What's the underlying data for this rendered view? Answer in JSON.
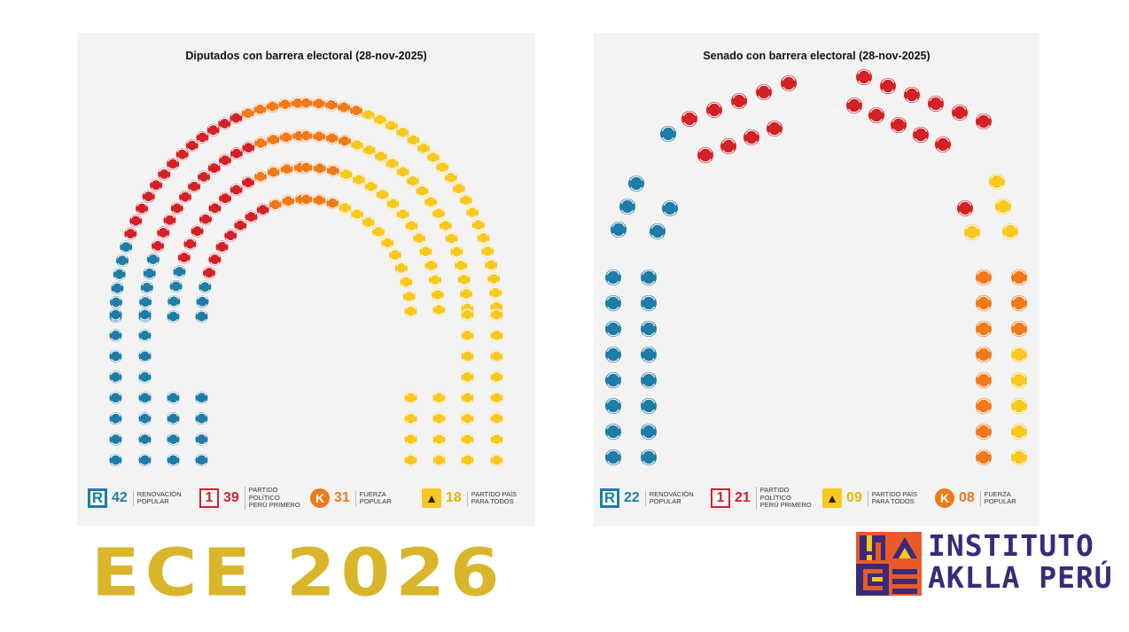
{
  "chart_data": [
    {
      "type": "parliament",
      "title": "Diputados con barrera electoral (28-nov-2025)",
      "total_seats": 130,
      "series": [
        {
          "name": "RENOVACIÓN POPULAR",
          "value": 42,
          "color": "#1f7ca6"
        },
        {
          "name": "PARTIDO POLÍTICO PERÚ PRIMERO",
          "value": 39,
          "color": "#d32128"
        },
        {
          "name": "FUERZA POPULAR",
          "value": 31,
          "color": "#f07a1a"
        },
        {
          "name": "PARTIDO PAÍS PARA TODOS",
          "value": 18,
          "color": "#f7c81e"
        }
      ]
    },
    {
      "type": "parliament",
      "title": "Senado con barrera electoral (28-nov-2025)",
      "total_seats": 60,
      "series": [
        {
          "name": "RENOVACIÓN POPULAR",
          "value": 22,
          "color": "#1f7ca6"
        },
        {
          "name": "PARTIDO POLÍTICO PERÚ PRIMERO",
          "value": 21,
          "color": "#d32128"
        },
        {
          "name": "PARTIDO PAÍS PARA TODOS",
          "value": 9,
          "color": "#f7c81e"
        },
        {
          "name": "FUERZA POPULAR",
          "value": 8,
          "color": "#f07a1a"
        }
      ]
    }
  ],
  "legend_dip": [
    {
      "logo": "R",
      "logo_icon": "renovacion-popular-logo",
      "num": "42",
      "line1": "RENOVACIÓN",
      "line2": "POPULAR",
      "line3": "",
      "color": "#1f7ca6"
    },
    {
      "logo": "1",
      "logo_icon": "peru-primero-logo",
      "num": "39",
      "line1": "PARTIDO",
      "line2": "POLÍTICO",
      "line3": "PERÚ PRIMERO",
      "color": "#d32128"
    },
    {
      "logo": "K",
      "logo_icon": "fuerza-popular-logo",
      "num": "31",
      "line1": "FUERZA",
      "line2": "POPULAR",
      "line3": "",
      "color": "#f07a1a"
    },
    {
      "logo": "▲",
      "logo_icon": "pais-para-todos-logo",
      "num": "18",
      "line1": "PARTIDO PAÍS",
      "line2": "PARA TODOS",
      "line3": "",
      "color": "#f7c81e"
    }
  ],
  "legend_sen": [
    {
      "logo": "R",
      "logo_icon": "renovacion-popular-logo",
      "num": "22",
      "line1": "RENOVACIÓN",
      "line2": "POPULAR",
      "line3": "",
      "color": "#1f7ca6"
    },
    {
      "logo": "1",
      "logo_icon": "peru-primero-logo",
      "num": "21",
      "line1": "PARTIDO",
      "line2": "POLÍTICO",
      "line3": "PERÚ PRIMERO",
      "color": "#d32128"
    },
    {
      "logo": "▲",
      "logo_icon": "pais-para-todos-logo",
      "num": "09",
      "line1": "PARTIDO PAÍS",
      "line2": "PARA TODOS",
      "line3": "",
      "color": "#f7c81e"
    },
    {
      "logo": "K",
      "logo_icon": "fuerza-popular-logo",
      "num": "08",
      "line1": "FUERZA",
      "line2": "POPULAR",
      "line3": "",
      "color": "#f07a1a"
    }
  ],
  "footer": {
    "title": "ECE 2026",
    "brand_line1": "INSTITUTO",
    "brand_line2": "AKLLA PERÚ",
    "brand_icon": "instituto-aklla-peru-logo",
    "brand_color": "#3a2a78"
  }
}
